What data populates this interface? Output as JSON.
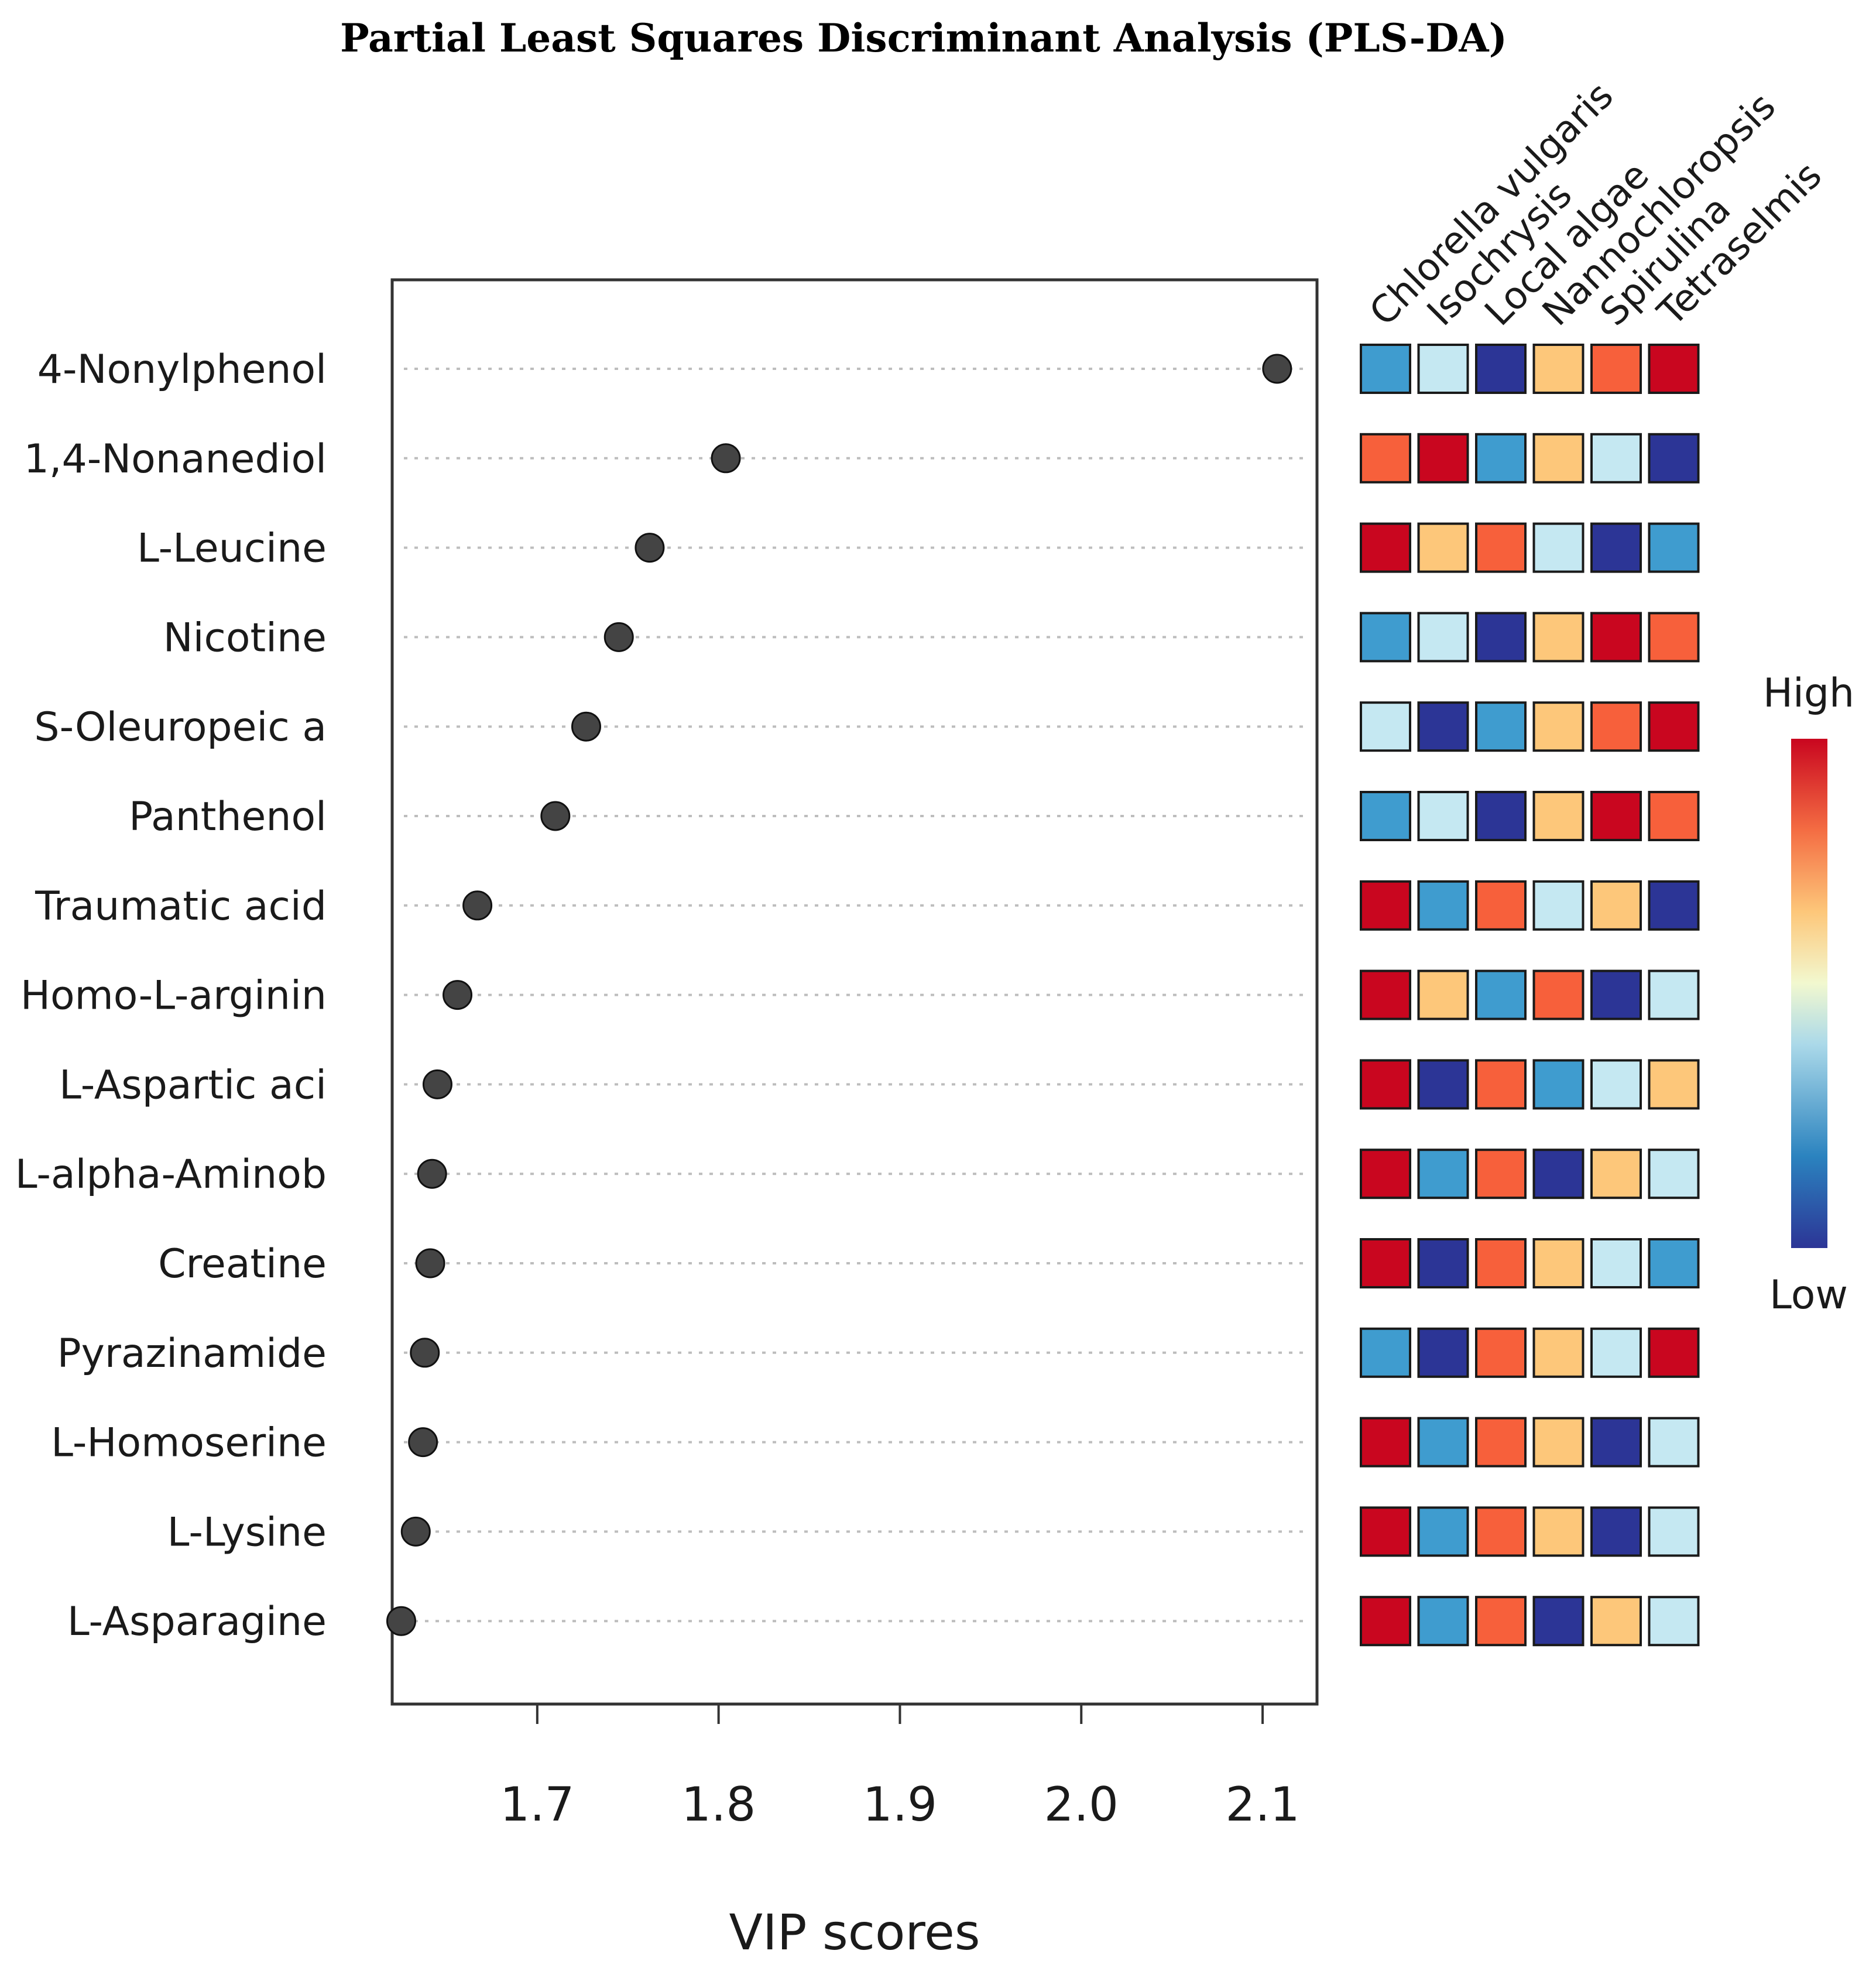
{
  "chart_data": {
    "type": "scatter",
    "title": "Partial Least Squares Discriminant Analysis (PLS-DA)",
    "xlabel": "VIP scores",
    "ylabel": "",
    "xlim": [
      1.62,
      2.13
    ],
    "xticks": [
      "1.7",
      "1.8",
      "1.9",
      "2.0",
      "2.1"
    ],
    "xtick_values": [
      1.7,
      1.8,
      1.9,
      2.0,
      2.1
    ],
    "grid": "dotted horizontal guide per feature",
    "features": [
      {
        "name": "4-Nonylphenol",
        "vip": 2.108
      },
      {
        "name": "1,4-Nonanediol",
        "vip": 1.804
      },
      {
        "name": "L-Leucine",
        "vip": 1.762
      },
      {
        "name": "Nicotine",
        "vip": 1.745
      },
      {
        "name": "S-Oleuropeic a",
        "vip": 1.727
      },
      {
        "name": "Panthenol",
        "vip": 1.71
      },
      {
        "name": "Traumatic acid",
        "vip": 1.667
      },
      {
        "name": "Homo-L-arginin",
        "vip": 1.656
      },
      {
        "name": "L-Aspartic aci",
        "vip": 1.645
      },
      {
        "name": "L-alpha-Aminob",
        "vip": 1.642
      },
      {
        "name": "Creatine",
        "vip": 1.641
      },
      {
        "name": "Pyrazinamide",
        "vip": 1.638
      },
      {
        "name": "L-Homoserine",
        "vip": 1.637
      },
      {
        "name": "L-Lysine",
        "vip": 1.633
      },
      {
        "name": "L-Asparagine",
        "vip": 1.625
      }
    ],
    "groups": [
      "Chlorella vulgaris",
      "Isochrysis",
      "Local algae",
      "Nannochloropsis",
      "Spirulina",
      "Tetraselmis"
    ],
    "heatmap_levels": [
      [
        2,
        1,
        0,
        3,
        4,
        5
      ],
      [
        4,
        5,
        2,
        3,
        1,
        0
      ],
      [
        5,
        3,
        4,
        1,
        0,
        2
      ],
      [
        2,
        1,
        0,
        3,
        5,
        4
      ],
      [
        1,
        0,
        2,
        3,
        4,
        5
      ],
      [
        2,
        1,
        0,
        3,
        5,
        4
      ],
      [
        5,
        2,
        4,
        1,
        3,
        0
      ],
      [
        5,
        3,
        2,
        4,
        0,
        1
      ],
      [
        5,
        0,
        4,
        2,
        1,
        3
      ],
      [
        5,
        2,
        4,
        0,
        3,
        1
      ],
      [
        5,
        0,
        4,
        3,
        1,
        2
      ],
      [
        2,
        0,
        4,
        3,
        1,
        5
      ],
      [
        5,
        2,
        4,
        3,
        0,
        1
      ],
      [
        5,
        2,
        4,
        3,
        0,
        1
      ],
      [
        5,
        2,
        4,
        0,
        3,
        1
      ]
    ],
    "level_colors": [
      "#2c3596",
      "#c5e8f2",
      "#3f9ccf",
      "#fdc77a",
      "#f7603b",
      "#c9061f"
    ],
    "legend": {
      "high_label": "High",
      "low_label": "Low",
      "position": "right"
    },
    "point_color": "#444444"
  }
}
